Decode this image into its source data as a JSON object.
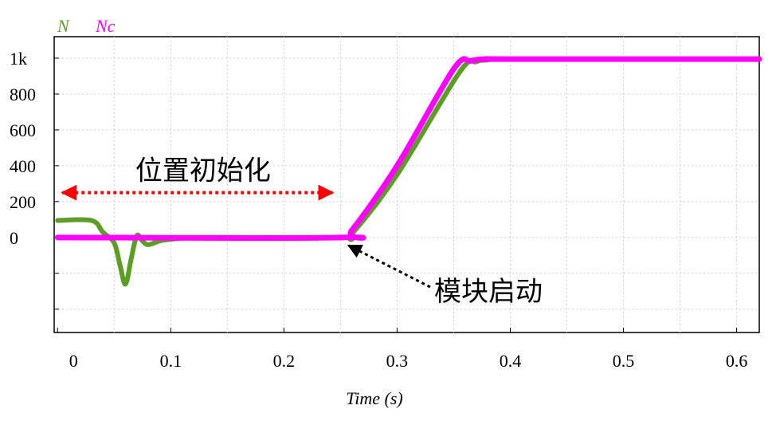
{
  "chart_data": {
    "type": "line",
    "xlabel": "Time (s)",
    "ylabel": "",
    "xlim": [
      -0.003,
      0.62
    ],
    "ylim": [
      -530,
      1120
    ],
    "x_ticks": [
      {
        "value": 0,
        "label": "0"
      },
      {
        "value": 0.1,
        "label": "0.1"
      },
      {
        "value": 0.2,
        "label": "0.2"
      },
      {
        "value": 0.3,
        "label": "0.3"
      },
      {
        "value": 0.4,
        "label": "0.4"
      },
      {
        "value": 0.5,
        "label": "0.5"
      },
      {
        "value": 0.6,
        "label": "0.6"
      }
    ],
    "y_ticks": [
      {
        "value": 0,
        "label": "0"
      },
      {
        "value": 200,
        "label": "200"
      },
      {
        "value": 400,
        "label": "400"
      },
      {
        "value": 600,
        "label": "600"
      },
      {
        "value": 800,
        "label": "800"
      },
      {
        "value": 1000,
        "label": "1k"
      }
    ],
    "grid": true,
    "legend_position": "top-left",
    "series": [
      {
        "name": "N",
        "color": "#5a9e23",
        "x": [
          0,
          0.03,
          0.04,
          0.05,
          0.055,
          0.06,
          0.065,
          0.07,
          0.075,
          0.08,
          0.09,
          0.1,
          0.13,
          0.25,
          0.26,
          0.3,
          0.355,
          0.37,
          0.38,
          0.4,
          0.62
        ],
        "y": [
          95,
          95,
          30,
          -30,
          -150,
          -260,
          -120,
          10,
          -20,
          -40,
          -20,
          -10,
          0,
          0,
          20,
          350,
          920,
          980,
          990,
          995,
          995
        ]
      },
      {
        "name": "Nc",
        "color": "#ff00ff",
        "x": [
          0,
          0.25,
          0.26,
          0.3,
          0.35,
          0.365,
          0.38,
          0.4,
          0.62
        ],
        "y": [
          0,
          0,
          40,
          400,
          940,
          985,
          995,
          995,
          995
        ]
      }
    ],
    "annotations": [
      {
        "text": "位置初始化",
        "type": "double-arrow",
        "x_range": [
          0,
          0.25
        ],
        "y": 250,
        "color": "#ff0000"
      },
      {
        "text": "模块启动",
        "type": "arrow",
        "points_to": {
          "x": 0.25,
          "y": 0
        },
        "color": "#000000"
      }
    ]
  }
}
